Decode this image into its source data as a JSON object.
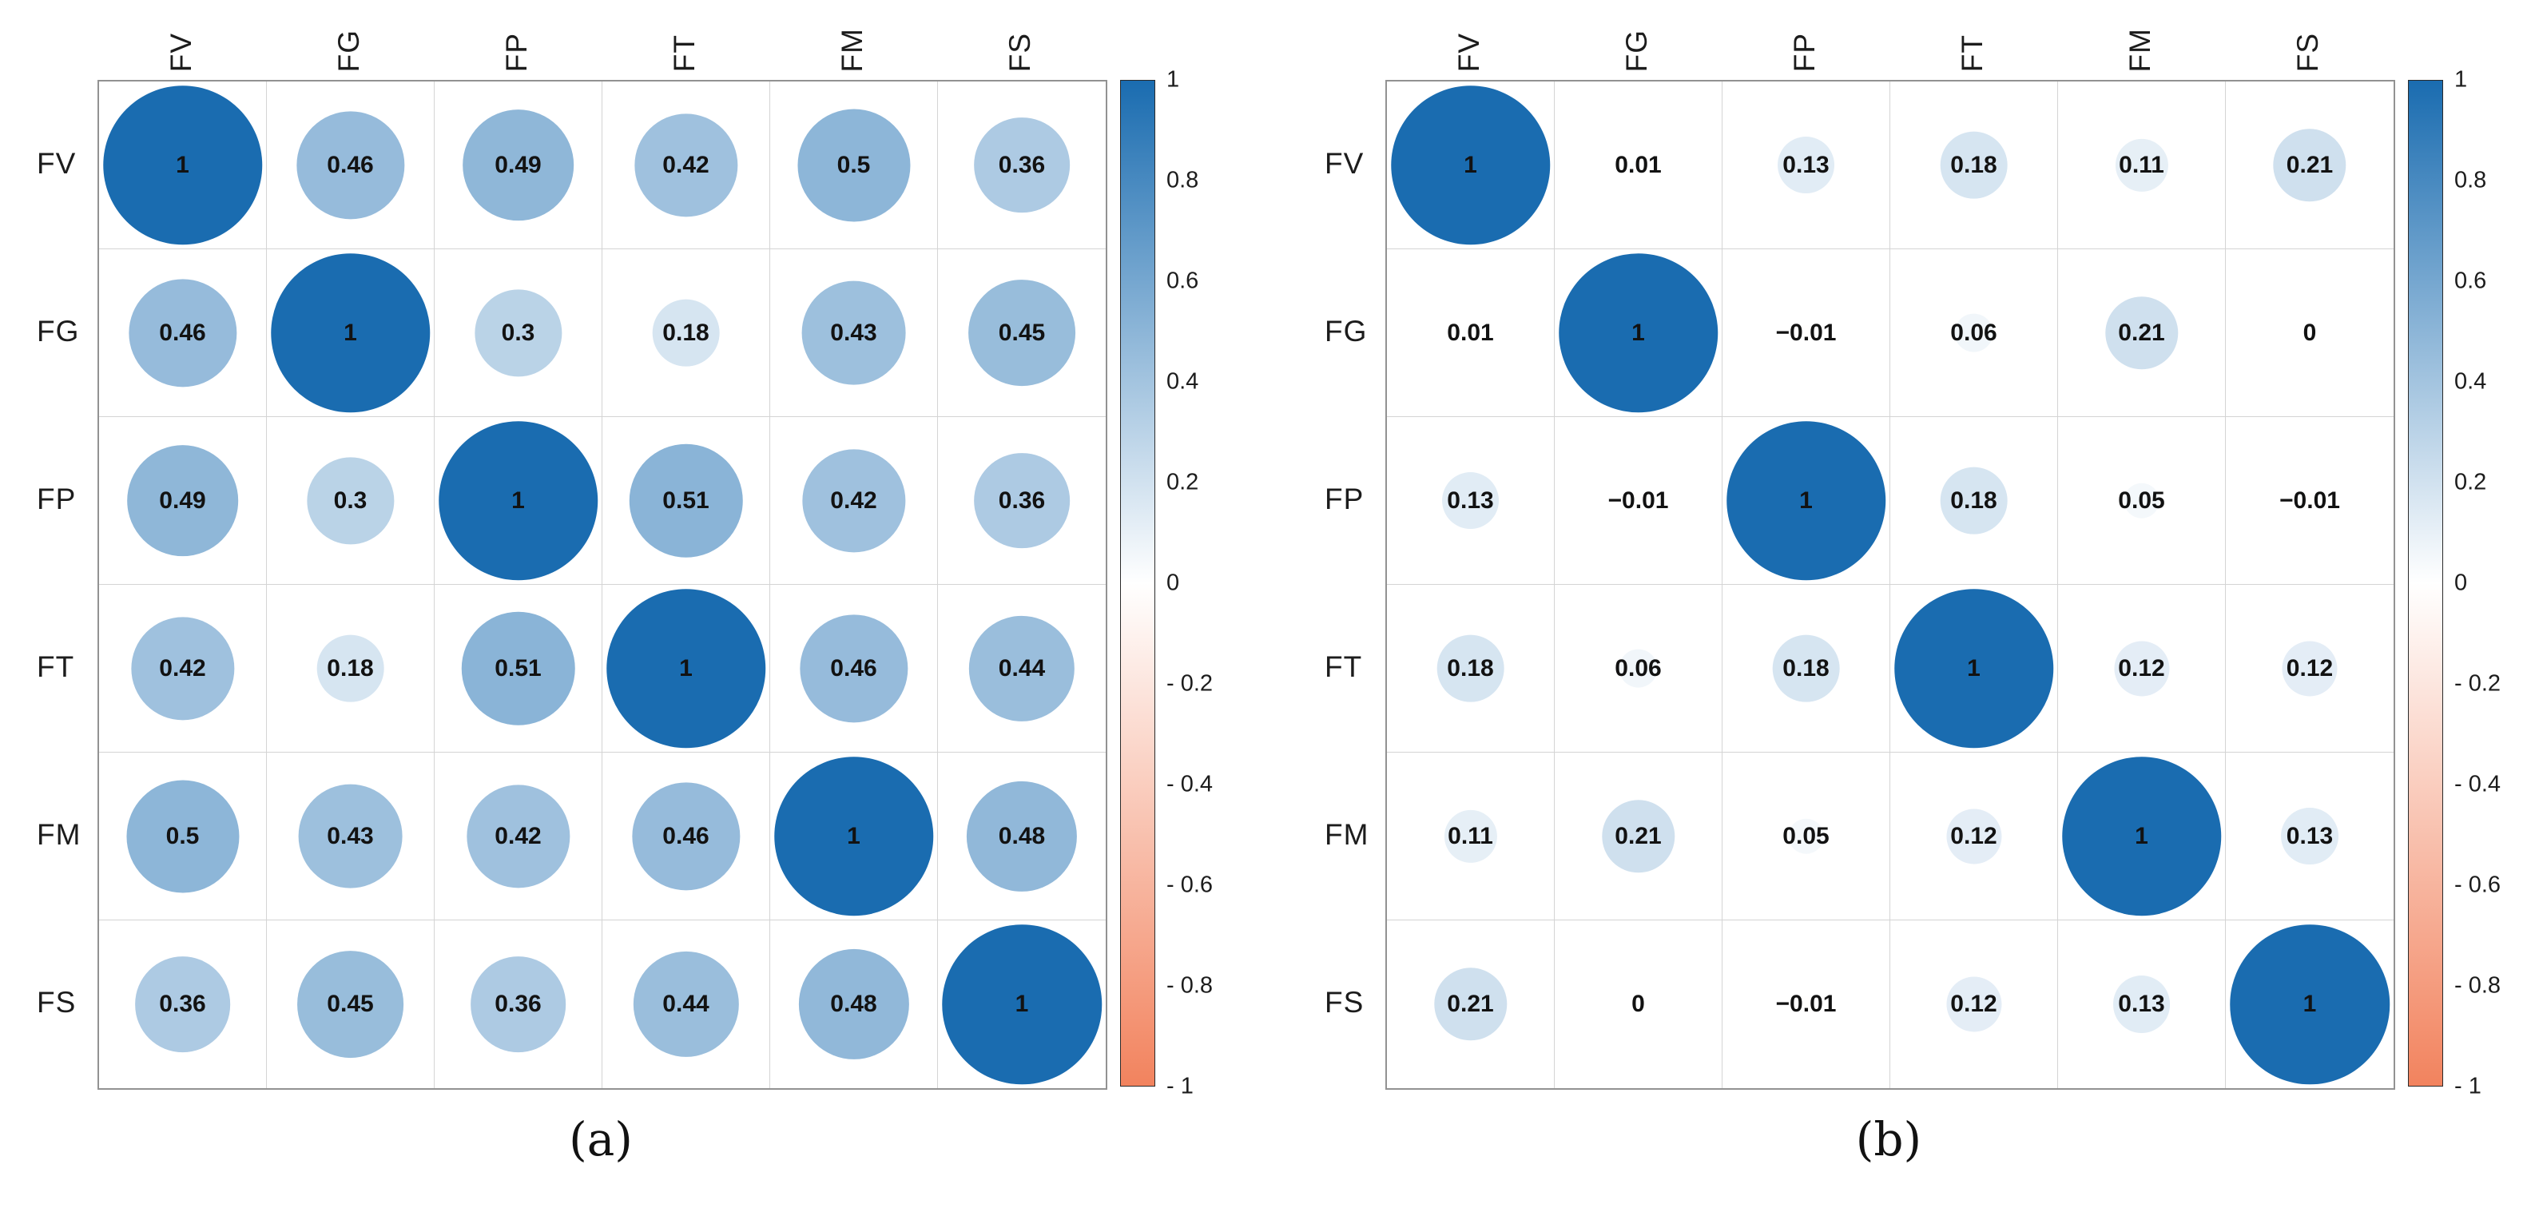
{
  "figure": {
    "background": "#ffffff"
  },
  "colors": {
    "positive_max": "#1a6cb0",
    "negative_max": "#f2835e",
    "zero": "#ffffff",
    "grid_line": "#d4d4d4",
    "outer_border": "#929292",
    "value_text": "#121212",
    "label_text": "#1c1c1c"
  },
  "chart_data": [
    {
      "type": "heatmap",
      "style": "correlation-circles",
      "caption": "(a)",
      "categories": [
        "FV",
        "FG",
        "FP",
        "FT",
        "FM",
        "FS"
      ],
      "matrix": [
        [
          1,
          0.46,
          0.49,
          0.42,
          0.5,
          0.36
        ],
        [
          0.46,
          1,
          0.3,
          0.18,
          0.43,
          0.45
        ],
        [
          0.49,
          0.3,
          1,
          0.51,
          0.42,
          0.36
        ],
        [
          0.42,
          0.18,
          0.51,
          1,
          0.46,
          0.44
        ],
        [
          0.5,
          0.43,
          0.42,
          0.46,
          1,
          0.48
        ],
        [
          0.36,
          0.45,
          0.36,
          0.44,
          0.48,
          1
        ]
      ],
      "value_range": [
        -1,
        1
      ],
      "legend_position": "right",
      "colorbar": {
        "labels": [
          "1",
          "0.8",
          "0.6",
          "0.4",
          "0.2",
          "0",
          "- 0.2",
          "- 0.4",
          "- 0.6",
          "- 0.8",
          "- 1"
        ],
        "values": [
          1,
          0.8,
          0.6,
          0.4,
          0.2,
          0,
          -0.2,
          -0.4,
          -0.6,
          -0.8,
          -1
        ]
      }
    },
    {
      "type": "heatmap",
      "style": "correlation-circles",
      "caption": "(b)",
      "categories": [
        "FV",
        "FG",
        "FP",
        "FT",
        "FM",
        "FS"
      ],
      "matrix": [
        [
          1,
          0.01,
          0.13,
          0.18,
          0.11,
          0.21
        ],
        [
          0.01,
          1,
          -0.01,
          0.06,
          0.21,
          0
        ],
        [
          0.13,
          -0.01,
          1,
          0.18,
          0.05,
          -0.01
        ],
        [
          0.18,
          0.06,
          0.18,
          1,
          0.12,
          0.12
        ],
        [
          0.11,
          0.21,
          0.05,
          0.12,
          1,
          0.13
        ],
        [
          0.21,
          0,
          -0.01,
          0.12,
          0.13,
          1
        ]
      ],
      "value_range": [
        -1,
        1
      ],
      "legend_position": "right",
      "colorbar": {
        "labels": [
          "1",
          "0.8",
          "0.6",
          "0.4",
          "0.2",
          "0",
          "- 0.2",
          "- 0.4",
          "- 0.6",
          "- 0.8",
          "- 1"
        ],
        "values": [
          1,
          0.8,
          0.6,
          0.4,
          0.2,
          0,
          -0.2,
          -0.4,
          -0.6,
          -0.8,
          -1
        ]
      }
    }
  ]
}
